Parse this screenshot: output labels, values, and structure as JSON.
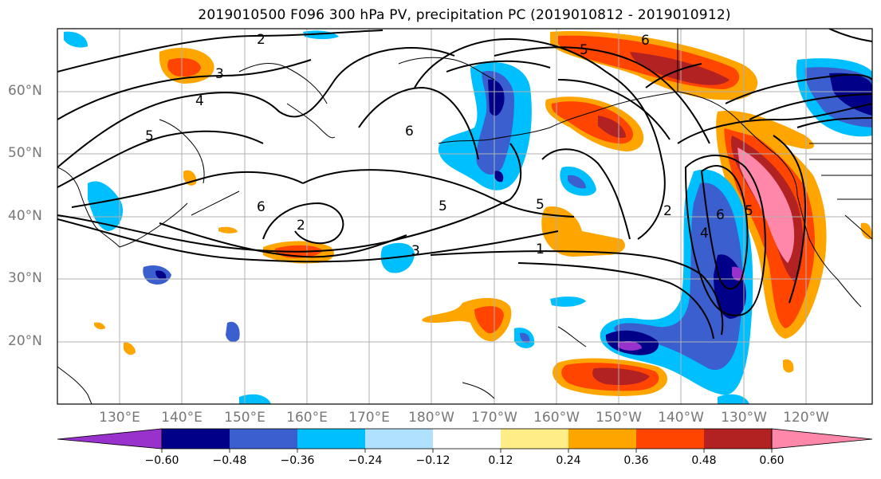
{
  "title": "2019010500 F096 300 hPa PV, precipitation PC (2019010812 - 2019010912)",
  "map": {
    "lat_ticks": [
      "60°N",
      "50°N",
      "40°N",
      "30°N",
      "20°N"
    ],
    "lon_ticks": [
      "130°E",
      "140°E",
      "150°E",
      "160°E",
      "170°E",
      "180°W",
      "170°W",
      "160°W",
      "150°W",
      "140°W",
      "130°W",
      "120°W"
    ],
    "contour_labels": [
      "2",
      "3",
      "4",
      "5",
      "6",
      "5",
      "6",
      "5",
      "6",
      "2",
      "2",
      "3",
      "1",
      "5",
      "6",
      "4",
      "5"
    ]
  },
  "colorbar": {
    "tick_labels": [
      "−0.60",
      "−0.48",
      "−0.36",
      "−0.24",
      "−0.12",
      "0.12",
      "0.24",
      "0.36",
      "0.48",
      "0.60"
    ],
    "colors": [
      "#9932cc",
      "#000088",
      "#3b5fcf",
      "#00bfff",
      "#b0e2ff",
      "#ffffff",
      "#ffee88",
      "#ffa500",
      "#ff4500",
      "#b22222",
      "#ff88aa"
    ]
  }
}
